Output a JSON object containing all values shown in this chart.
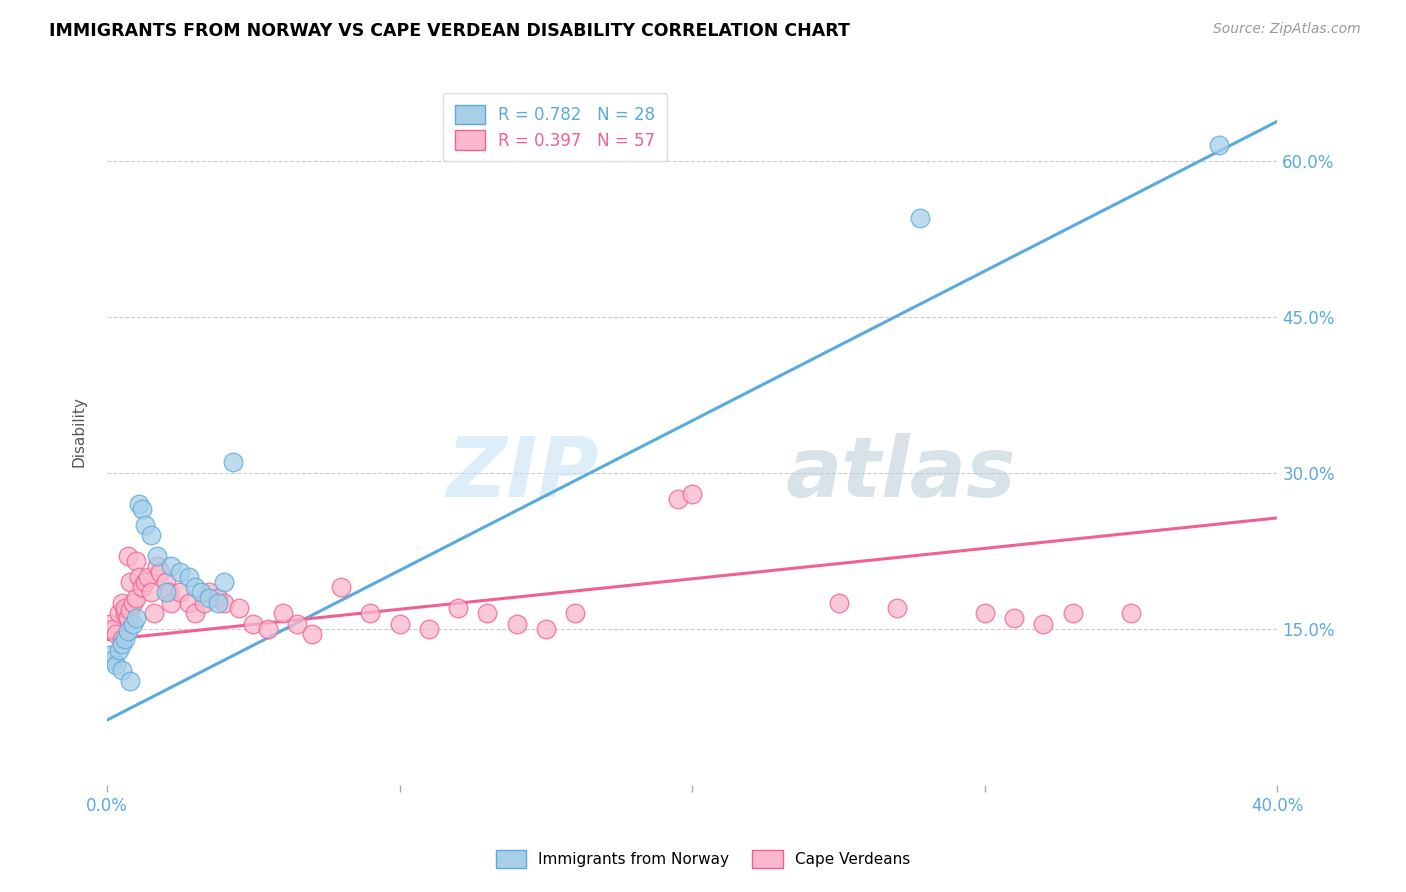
{
  "title": "IMMIGRANTS FROM NORWAY VS CAPE VERDEAN DISABILITY CORRELATION CHART",
  "source": "Source: ZipAtlas.com",
  "ylabel": "Disability",
  "ytick_labels": [
    "60.0%",
    "45.0%",
    "30.0%",
    "15.0%"
  ],
  "ytick_values": [
    0.6,
    0.45,
    0.3,
    0.15
  ],
  "xlim": [
    0.0,
    0.4
  ],
  "ylim": [
    0.0,
    0.68
  ],
  "legend1_label": "R = 0.782   N = 28",
  "legend2_label": "R = 0.397   N = 57",
  "legend1_color": "#a8cfe8",
  "legend2_color": "#f9b8cb",
  "line1_color": "#5aaadd",
  "line2_color": "#f06090",
  "norway_color": "#a8cfe8",
  "capeverde_color": "#f9b8cb",
  "norway_edge": "#5aaadd",
  "capeverde_edge": "#f06090",
  "norway_line_x": [
    -0.005,
    0.405
  ],
  "norway_line_y": [
    0.055,
    0.645
  ],
  "capeverde_line_x": [
    -0.005,
    0.405
  ],
  "capeverde_line_y": [
    0.138,
    0.258
  ],
  "norway_x": [
    0.001,
    0.002,
    0.003,
    0.004,
    0.005,
    0.005,
    0.006,
    0.007,
    0.008,
    0.009,
    0.01,
    0.011,
    0.012,
    0.013,
    0.015,
    0.017,
    0.02,
    0.022,
    0.025,
    0.028,
    0.03,
    0.032,
    0.035,
    0.038,
    0.04,
    0.043,
    0.278,
    0.38
  ],
  "norway_y": [
    0.125,
    0.12,
    0.115,
    0.13,
    0.11,
    0.135,
    0.14,
    0.148,
    0.1,
    0.155,
    0.16,
    0.27,
    0.265,
    0.25,
    0.24,
    0.22,
    0.185,
    0.21,
    0.205,
    0.2,
    0.19,
    0.185,
    0.18,
    0.175,
    0.195,
    0.31,
    0.545,
    0.615
  ],
  "capeverde_x": [
    0.001,
    0.002,
    0.003,
    0.004,
    0.005,
    0.005,
    0.006,
    0.006,
    0.007,
    0.007,
    0.008,
    0.008,
    0.009,
    0.01,
    0.01,
    0.011,
    0.012,
    0.013,
    0.014,
    0.015,
    0.016,
    0.017,
    0.018,
    0.02,
    0.021,
    0.022,
    0.025,
    0.028,
    0.03,
    0.033,
    0.035,
    0.038,
    0.04,
    0.045,
    0.05,
    0.055,
    0.06,
    0.065,
    0.07,
    0.08,
    0.09,
    0.1,
    0.11,
    0.12,
    0.13,
    0.14,
    0.15,
    0.16,
    0.195,
    0.2,
    0.25,
    0.27,
    0.3,
    0.31,
    0.32,
    0.33,
    0.35
  ],
  "capeverde_y": [
    0.155,
    0.15,
    0.145,
    0.165,
    0.14,
    0.175,
    0.165,
    0.17,
    0.16,
    0.22,
    0.168,
    0.195,
    0.175,
    0.18,
    0.215,
    0.2,
    0.19,
    0.195,
    0.2,
    0.185,
    0.165,
    0.21,
    0.205,
    0.195,
    0.185,
    0.175,
    0.185,
    0.175,
    0.165,
    0.175,
    0.185,
    0.18,
    0.175,
    0.17,
    0.155,
    0.15,
    0.165,
    0.155,
    0.145,
    0.19,
    0.165,
    0.155,
    0.15,
    0.17,
    0.165,
    0.155,
    0.15,
    0.165,
    0.275,
    0.28,
    0.175,
    0.17,
    0.165,
    0.16,
    0.155,
    0.165,
    0.165
  ]
}
